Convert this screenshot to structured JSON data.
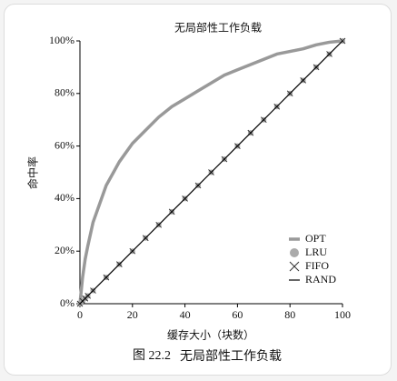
{
  "chart_data": {
    "type": "line",
    "title": "无局部性工作负载",
    "x_label": "缓存大小（块数）",
    "y_label": "命中率",
    "x": [
      0,
      1,
      2,
      3,
      5,
      10,
      15,
      20,
      25,
      30,
      35,
      40,
      45,
      50,
      55,
      60,
      65,
      70,
      75,
      80,
      85,
      90,
      95,
      100
    ],
    "series": [
      {
        "name": "OPT",
        "color": "#999999",
        "style": "thick-line",
        "values": [
          0,
          10,
          17,
          22,
          31,
          45,
          54,
          61,
          66,
          71,
          75,
          78,
          81,
          84,
          87,
          89,
          91,
          93,
          95,
          96,
          97,
          98.5,
          99.5,
          100
        ]
      },
      {
        "name": "LRU",
        "color": "#aaaaaa",
        "style": "circle",
        "values": [
          0,
          1,
          2,
          3,
          5,
          10,
          15,
          20,
          25,
          30,
          35,
          40,
          45,
          50,
          55,
          60,
          65,
          70,
          75,
          80,
          85,
          90,
          95,
          100
        ]
      },
      {
        "name": "FIFO",
        "color": "#333333",
        "style": "cross",
        "values": [
          0,
          1,
          2,
          3,
          5,
          10,
          15,
          20,
          25,
          30,
          35,
          40,
          45,
          50,
          55,
          60,
          65,
          70,
          75,
          80,
          85,
          90,
          95,
          100
        ]
      },
      {
        "name": "RAND",
        "color": "#000000",
        "style": "thin-line",
        "values": [
          0,
          1,
          2,
          3,
          5,
          10,
          15,
          20,
          25,
          30,
          35,
          40,
          45,
          50,
          55,
          60,
          65,
          70,
          75,
          80,
          85,
          90,
          95,
          100
        ]
      }
    ],
    "xlim": [
      0,
      100
    ],
    "xticks": [
      0,
      20,
      40,
      60,
      80,
      100
    ],
    "ylim": [
      0,
      100
    ],
    "yticks": [
      {
        "value": 0,
        "label": "0%"
      },
      {
        "value": 20,
        "label": "20%"
      },
      {
        "value": 40,
        "label": "40%"
      },
      {
        "value": 60,
        "label": "60%"
      },
      {
        "value": 80,
        "label": "80%"
      },
      {
        "value": 100,
        "label": "100%"
      }
    ],
    "grid": false,
    "legend": "lower right"
  },
  "caption": {
    "number": "图 22.2",
    "title": "无局部性工作负载"
  }
}
